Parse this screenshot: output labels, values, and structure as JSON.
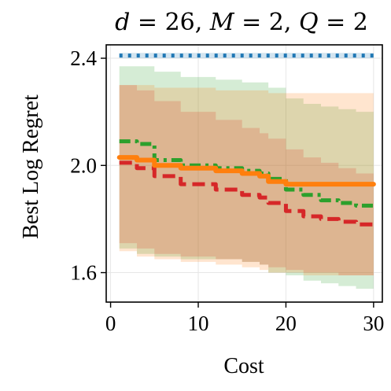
{
  "chart_data": {
    "type": "line",
    "title": "d = 26, M = 2, Q = 2",
    "title_parts": [
      {
        "text": "d",
        "italic": true
      },
      {
        "text": " = 26, ",
        "italic": false
      },
      {
        "text": "M",
        "italic": true
      },
      {
        "text": " = 2, ",
        "italic": false
      },
      {
        "text": "Q",
        "italic": true
      },
      {
        "text": " = 2",
        "italic": false
      }
    ],
    "xlabel": "Cost",
    "ylabel": "Best Log Regret",
    "xlim": [
      -0.5,
      31.0
    ],
    "ylim": [
      1.49,
      2.45
    ],
    "xticks": [
      0,
      10,
      20,
      30
    ],
    "xtick_labels": [
      "0",
      "10",
      "20",
      "30"
    ],
    "yticks": [
      1.6,
      2.0,
      2.4
    ],
    "ytick_labels": [
      "1.6",
      "2.0",
      "2.4"
    ],
    "grid": true,
    "legend": "none",
    "series": [
      {
        "color": "#1f77b4",
        "dash": "dotted",
        "x": [
          1,
          30
        ],
        "y": [
          2.41,
          2.41
        ],
        "lower": [
          2.4,
          2.4
        ],
        "upper": [
          2.42,
          2.42
        ]
      },
      {
        "color": "#2ca02c",
        "dash": "dashdot",
        "x": [
          1,
          3,
          5,
          8,
          12,
          15,
          17,
          18,
          20,
          22,
          24,
          26,
          28,
          30
        ],
        "y": [
          2.09,
          2.08,
          2.02,
          2.0,
          1.99,
          1.98,
          1.97,
          1.95,
          1.91,
          1.89,
          1.87,
          1.86,
          1.85,
          1.85
        ],
        "lower": [
          1.69,
          1.69,
          1.67,
          1.66,
          1.65,
          1.65,
          1.64,
          1.63,
          1.6,
          1.59,
          1.57,
          1.56,
          1.55,
          1.54
        ],
        "upper": [
          2.37,
          2.37,
          2.35,
          2.33,
          2.32,
          2.31,
          2.31,
          2.29,
          2.25,
          2.23,
          2.22,
          2.21,
          2.2,
          2.2
        ]
      },
      {
        "color": "#d62728",
        "dash": "dashed",
        "x": [
          1,
          3,
          5,
          8,
          12,
          15,
          17,
          18,
          20,
          22,
          24,
          26,
          28,
          30
        ],
        "y": [
          2.01,
          1.99,
          1.96,
          1.93,
          1.91,
          1.89,
          1.88,
          1.86,
          1.83,
          1.81,
          1.8,
          1.79,
          1.78,
          1.77
        ],
        "lower": [
          1.72,
          1.71,
          1.69,
          1.67,
          1.66,
          1.65,
          1.64,
          1.63,
          1.62,
          1.61,
          1.6,
          1.6,
          1.59,
          1.59
        ],
        "upper": [
          2.3,
          2.28,
          2.24,
          2.2,
          2.17,
          2.14,
          2.12,
          2.1,
          2.06,
          2.03,
          2.01,
          1.99,
          1.97,
          1.96
        ]
      },
      {
        "color": "#ff7f0e",
        "dash": "solid",
        "x": [
          1,
          3,
          5,
          8,
          12,
          15,
          17,
          18,
          20,
          22,
          24,
          26,
          28,
          30
        ],
        "y": [
          2.03,
          2.02,
          2.0,
          1.99,
          1.98,
          1.97,
          1.96,
          1.94,
          1.93,
          1.93,
          1.93,
          1.93,
          1.93,
          1.93
        ],
        "lower": [
          1.7,
          1.68,
          1.66,
          1.65,
          1.64,
          1.63,
          1.62,
          1.61,
          1.6,
          1.6,
          1.59,
          1.59,
          1.59,
          1.59
        ],
        "upper": [
          2.3,
          2.3,
          2.29,
          2.29,
          2.28,
          2.28,
          2.28,
          2.27,
          2.27,
          2.27,
          2.27,
          2.27,
          2.27,
          2.27
        ]
      }
    ]
  }
}
